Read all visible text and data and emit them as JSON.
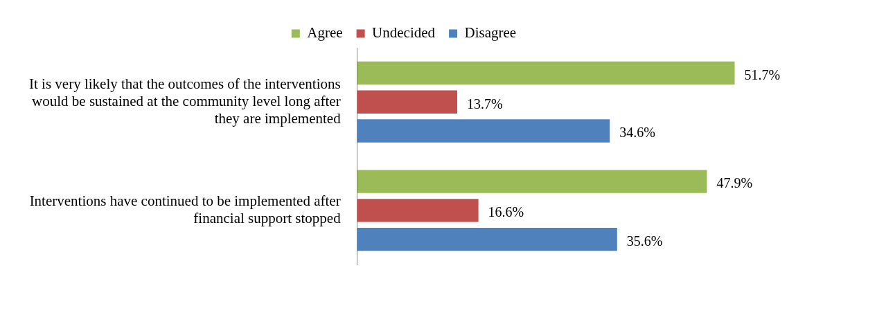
{
  "chart_data": {
    "type": "bar",
    "orientation": "horizontal",
    "categories": [
      "It is very likely that the outcomes of the interventions would be sustained at the community level long after they are implemented",
      "Interventions have continued to be implemented after financial support stopped"
    ],
    "series": [
      {
        "name": "Agree",
        "color": "#9bbb59",
        "values": [
          51.7,
          47.9
        ],
        "value_labels": [
          "51.7%",
          "47.9%"
        ]
      },
      {
        "name": "Undecided",
        "color": "#c0504d",
        "values": [
          13.7,
          16.6
        ],
        "value_labels": [
          "13.7%",
          "16.6%"
        ]
      },
      {
        "name": "Disagree",
        "color": "#4f81bd",
        "values": [
          34.6,
          35.6
        ],
        "value_labels": [
          "34.6%",
          "35.6%"
        ]
      }
    ],
    "tick_labels": "y",
    "legend": "top"
  }
}
